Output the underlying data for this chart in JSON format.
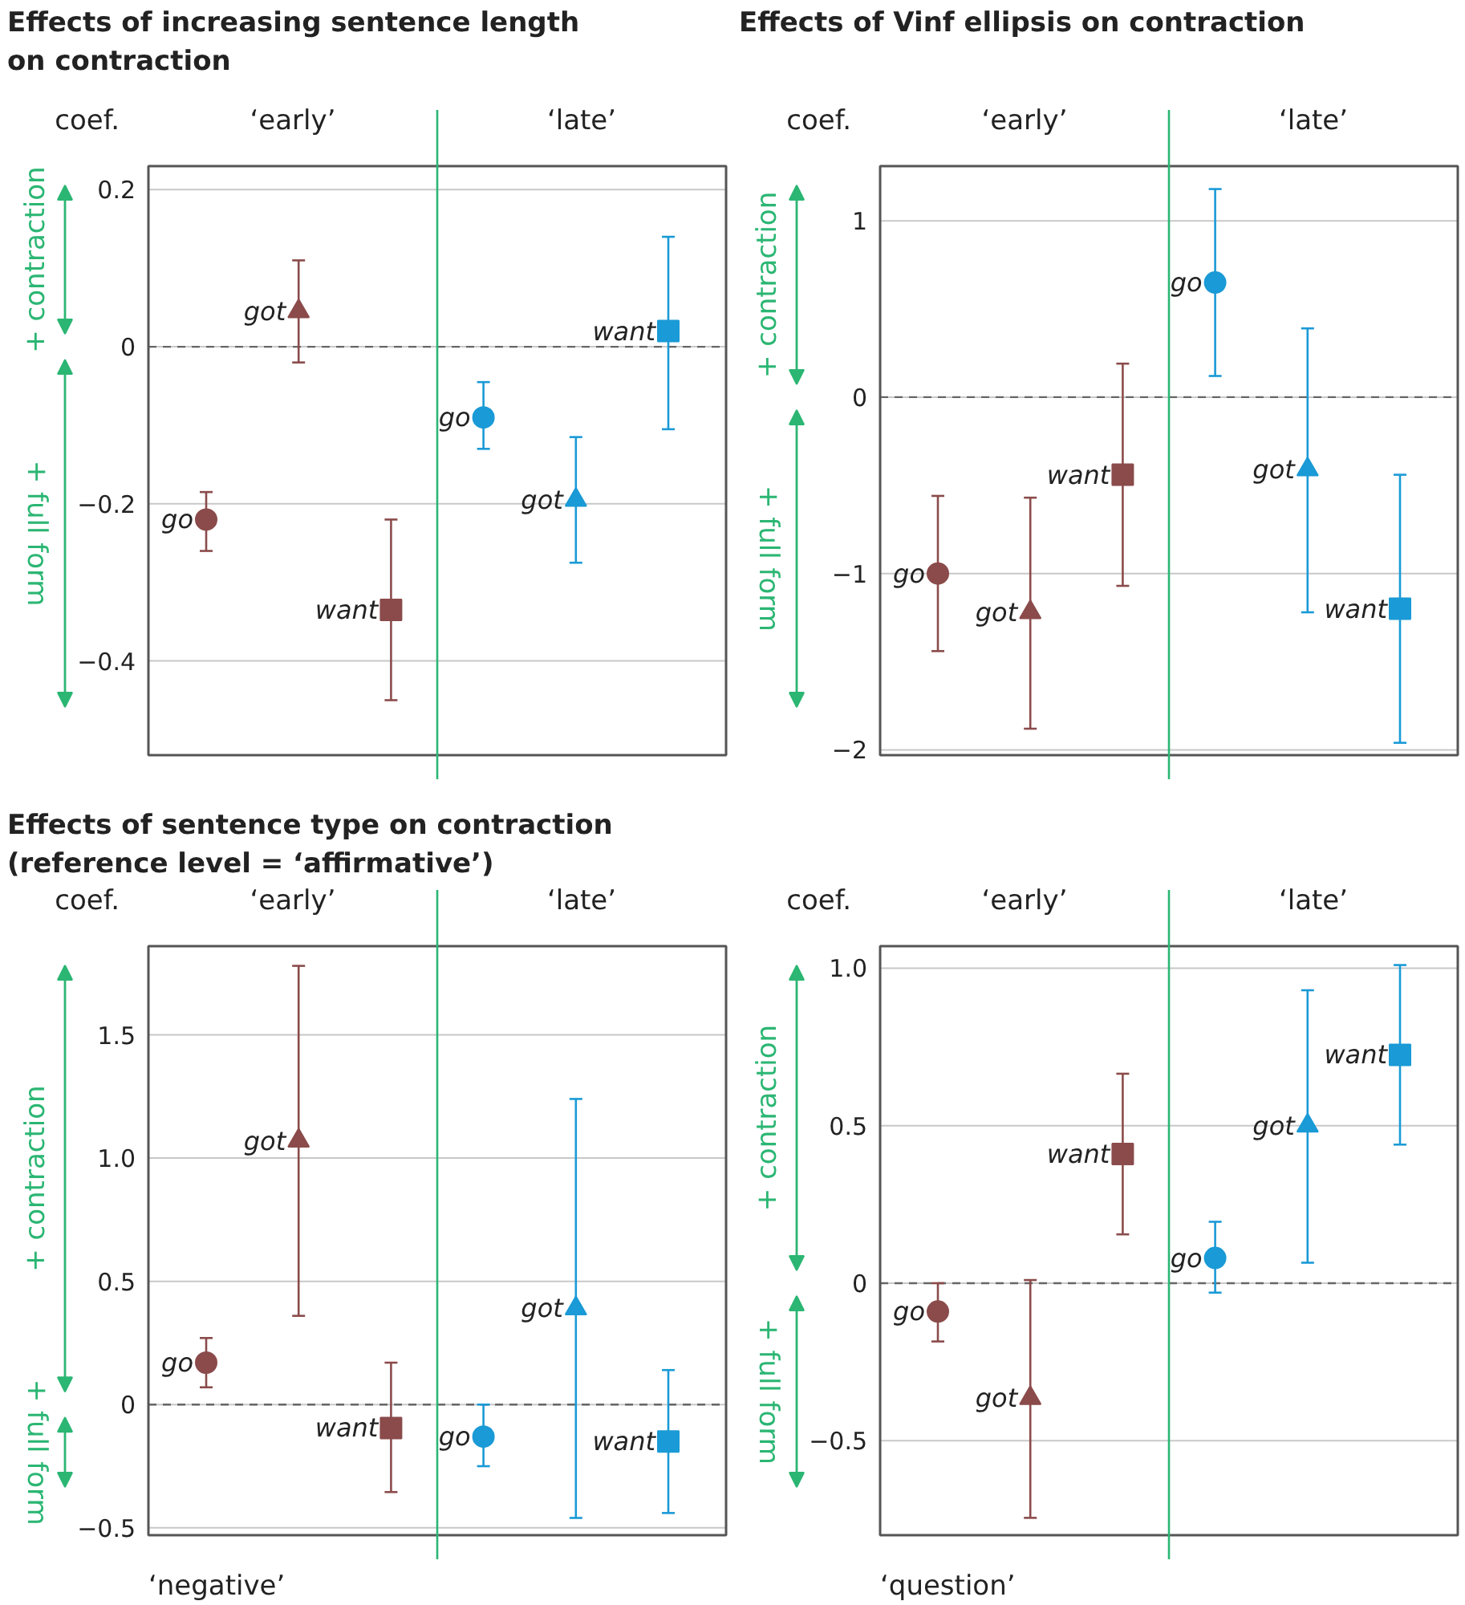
{
  "chart_data": [
    {
      "type": "scatter",
      "title": "Effects of increasing sentence length\non contraction",
      "ylabel": "coef.",
      "categories": [
        null,
        null,
        null,
        null,
        null,
        null
      ],
      "ylim": [
        -0.52,
        0.23
      ],
      "yticks": [
        {
          "value": -0.4,
          "label": "−0.4"
        },
        {
          "value": -0.2,
          "label": "−0.2"
        },
        0,
        0.2
      ],
      "tick_labels": "y",
      "grid": "y",
      "series": [
        {
          "name": "go",
          "color": "#8b4b4b",
          "marker": "circle",
          "values": [
            -0.22,
            null,
            null,
            null,
            null,
            null
          ],
          "errors": [
            [
              -0.26,
              -0.185
            ],
            null,
            null,
            null,
            null,
            null
          ]
        },
        {
          "name": "got",
          "color": "#8b4b4b",
          "marker": "triangle",
          "values": [
            null,
            0.045,
            null,
            null,
            null,
            null
          ],
          "errors": [
            null,
            [
              -0.02,
              0.11
            ],
            null,
            null,
            null,
            null
          ]
        },
        {
          "name": "want",
          "color": "#8b4b4b",
          "marker": "square",
          "values": [
            null,
            null,
            -0.335,
            null,
            null,
            null
          ],
          "errors": [
            null,
            null,
            [
              -0.45,
              -0.22
            ],
            null,
            null,
            null
          ]
        },
        {
          "name": "go",
          "color": "#1a9ad6",
          "marker": "circle",
          "values": [
            null,
            null,
            null,
            -0.09,
            null,
            null
          ],
          "errors": [
            null,
            null,
            null,
            [
              -0.13,
              -0.045
            ],
            null,
            null
          ]
        },
        {
          "name": "got",
          "color": "#1a9ad6",
          "marker": "triangle",
          "values": [
            null,
            null,
            null,
            null,
            -0.195,
            null
          ],
          "errors": [
            null,
            null,
            null,
            null,
            [
              -0.275,
              -0.115
            ],
            null
          ]
        },
        {
          "name": "want",
          "color": "#1a9ad6",
          "marker": "square",
          "values": [
            null,
            null,
            null,
            null,
            null,
            0.02
          ],
          "errors": [
            null,
            null,
            null,
            null,
            null,
            [
              -0.105,
              0.14
            ]
          ]
        }
      ],
      "ref_lines": [
        {
          "axis": "y",
          "value": 0,
          "color": "#666666",
          "line_style": "dashed"
        }
      ],
      "annotations": [
        "‘early’",
        "‘late’",
        "+ contraction",
        "+ full form"
      ]
    },
    {
      "type": "scatter",
      "title": "Effects of Vinf ellipsis on contraction",
      "ylabel": "coef.",
      "categories": [
        null,
        null,
        null,
        null,
        null,
        null
      ],
      "ylim": [
        -2.03,
        1.31
      ],
      "yticks": [
        {
          "value": -2,
          "label": "−2"
        },
        {
          "value": -1,
          "label": "−1"
        },
        0,
        1
      ],
      "tick_labels": "y",
      "grid": "y",
      "series": [
        {
          "name": "go",
          "color": "#8b4b4b",
          "marker": "circle",
          "values": [
            -1.0,
            null,
            null,
            null,
            null,
            null
          ],
          "errors": [
            [
              -1.44,
              -0.56
            ],
            null,
            null,
            null,
            null,
            null
          ]
        },
        {
          "name": "got",
          "color": "#8b4b4b",
          "marker": "triangle",
          "values": [
            null,
            -1.22,
            null,
            null,
            null,
            null
          ],
          "errors": [
            null,
            [
              -1.88,
              -0.57
            ],
            null,
            null,
            null,
            null
          ]
        },
        {
          "name": "want",
          "color": "#8b4b4b",
          "marker": "square",
          "values": [
            null,
            null,
            -0.44,
            null,
            null,
            null
          ],
          "errors": [
            null,
            null,
            [
              -1.07,
              0.19
            ],
            null,
            null,
            null
          ]
        },
        {
          "name": "go",
          "color": "#1a9ad6",
          "marker": "circle",
          "values": [
            null,
            null,
            null,
            0.65,
            null,
            null
          ],
          "errors": [
            null,
            null,
            null,
            [
              0.12,
              1.18
            ],
            null,
            null
          ]
        },
        {
          "name": "got",
          "color": "#1a9ad6",
          "marker": "triangle",
          "values": [
            null,
            null,
            null,
            null,
            -0.41,
            null
          ],
          "errors": [
            null,
            null,
            null,
            null,
            [
              -1.22,
              0.39
            ],
            null
          ]
        },
        {
          "name": "want",
          "color": "#1a9ad6",
          "marker": "square",
          "values": [
            null,
            null,
            null,
            null,
            null,
            -1.2
          ],
          "errors": [
            null,
            null,
            null,
            null,
            null,
            [
              -1.96,
              -0.44
            ]
          ]
        }
      ],
      "ref_lines": [
        {
          "axis": "y",
          "value": 0,
          "color": "#666666",
          "line_style": "dashed"
        }
      ],
      "annotations": [
        "‘early’",
        "‘late’",
        "+ contraction",
        "+ full form"
      ]
    },
    {
      "type": "scatter",
      "title": "Effects of sentence type on contraction\n(reference level = ‘affirmative’)",
      "ylabel": "coef.",
      "xlabel": "‘negative’",
      "categories": [
        null,
        null,
        null,
        null,
        null,
        null
      ],
      "ylim": [
        -0.53,
        1.86
      ],
      "yticks": [
        {
          "value": -0.5,
          "label": "−0.5"
        },
        0,
        0.5,
        {
          "value": 1,
          "label": "1.0"
        },
        1.5
      ],
      "tick_labels": "y",
      "grid": "y",
      "series": [
        {
          "name": "go",
          "color": "#8b4b4b",
          "marker": "circle",
          "values": [
            0.17,
            null,
            null,
            null,
            null,
            null
          ],
          "errors": [
            [
              0.07,
              0.27
            ],
            null,
            null,
            null,
            null,
            null
          ]
        },
        {
          "name": "got",
          "color": "#8b4b4b",
          "marker": "triangle",
          "values": [
            null,
            1.07,
            null,
            null,
            null,
            null
          ],
          "errors": [
            null,
            [
              0.36,
              1.78
            ],
            null,
            null,
            null,
            null
          ]
        },
        {
          "name": "want",
          "color": "#8b4b4b",
          "marker": "square",
          "values": [
            null,
            null,
            -0.095,
            null,
            null,
            null
          ],
          "errors": [
            null,
            null,
            [
              -0.355,
              0.17
            ],
            null,
            null,
            null
          ]
        },
        {
          "name": "go",
          "color": "#1a9ad6",
          "marker": "circle",
          "values": [
            null,
            null,
            null,
            -0.13,
            null,
            null
          ],
          "errors": [
            null,
            null,
            null,
            [
              -0.25,
              0
            ],
            null,
            null
          ]
        },
        {
          "name": "got",
          "color": "#1a9ad6",
          "marker": "triangle",
          "values": [
            null,
            null,
            null,
            null,
            0.39,
            null
          ],
          "errors": [
            null,
            null,
            null,
            null,
            [
              -0.46,
              1.24
            ],
            null
          ]
        },
        {
          "name": "want",
          "color": "#1a9ad6",
          "marker": "square",
          "values": [
            null,
            null,
            null,
            null,
            null,
            -0.15
          ],
          "errors": [
            null,
            null,
            null,
            null,
            null,
            [
              -0.44,
              0.14
            ]
          ]
        }
      ],
      "ref_lines": [
        {
          "axis": "y",
          "value": 0,
          "color": "#666666",
          "line_style": "dashed"
        }
      ],
      "annotations": [
        "‘early’",
        "‘late’",
        "+ contraction",
        "+ full form"
      ]
    },
    {
      "type": "scatter",
      "ylabel": "coef.",
      "xlabel": "‘question’",
      "categories": [
        null,
        null,
        null,
        null,
        null,
        null
      ],
      "ylim": [
        -0.8,
        1.07
      ],
      "yticks": [
        {
          "value": -0.5,
          "label": "−0.5"
        },
        0,
        0.5,
        {
          "value": 1,
          "label": "1.0"
        }
      ],
      "tick_labels": "y",
      "grid": "y",
      "series": [
        {
          "name": "go",
          "color": "#8b4b4b",
          "marker": "circle",
          "values": [
            -0.09,
            null,
            null,
            null,
            null,
            null
          ],
          "errors": [
            [
              -0.185,
              0
            ],
            null,
            null,
            null,
            null,
            null
          ]
        },
        {
          "name": "got",
          "color": "#8b4b4b",
          "marker": "triangle",
          "values": [
            null,
            -0.365,
            null,
            null,
            null,
            null
          ],
          "errors": [
            null,
            [
              -0.745,
              0.01
            ],
            null,
            null,
            null,
            null
          ]
        },
        {
          "name": "want",
          "color": "#8b4b4b",
          "marker": "square",
          "values": [
            null,
            null,
            0.41,
            null,
            null,
            null
          ],
          "errors": [
            null,
            null,
            [
              0.155,
              0.665
            ],
            null,
            null,
            null
          ]
        },
        {
          "name": "go",
          "color": "#1a9ad6",
          "marker": "circle",
          "values": [
            null,
            null,
            null,
            0.08,
            null,
            null
          ],
          "errors": [
            null,
            null,
            null,
            [
              -0.03,
              0.195
            ],
            null,
            null
          ]
        },
        {
          "name": "got",
          "color": "#1a9ad6",
          "marker": "triangle",
          "values": [
            null,
            null,
            null,
            null,
            0.5,
            null
          ],
          "errors": [
            null,
            null,
            null,
            null,
            [
              0.065,
              0.93
            ],
            null
          ]
        },
        {
          "name": "want",
          "color": "#1a9ad6",
          "marker": "square",
          "values": [
            null,
            null,
            null,
            null,
            null,
            0.725
          ],
          "errors": [
            null,
            null,
            null,
            null,
            null,
            [
              0.44,
              1.01
            ]
          ]
        }
      ],
      "ref_lines": [
        {
          "axis": "y",
          "value": 0,
          "color": "#666666",
          "line_style": "dashed"
        }
      ],
      "annotations": [
        "‘early’",
        "‘late’",
        "+ contraction",
        "+ full form"
      ]
    }
  ]
}
